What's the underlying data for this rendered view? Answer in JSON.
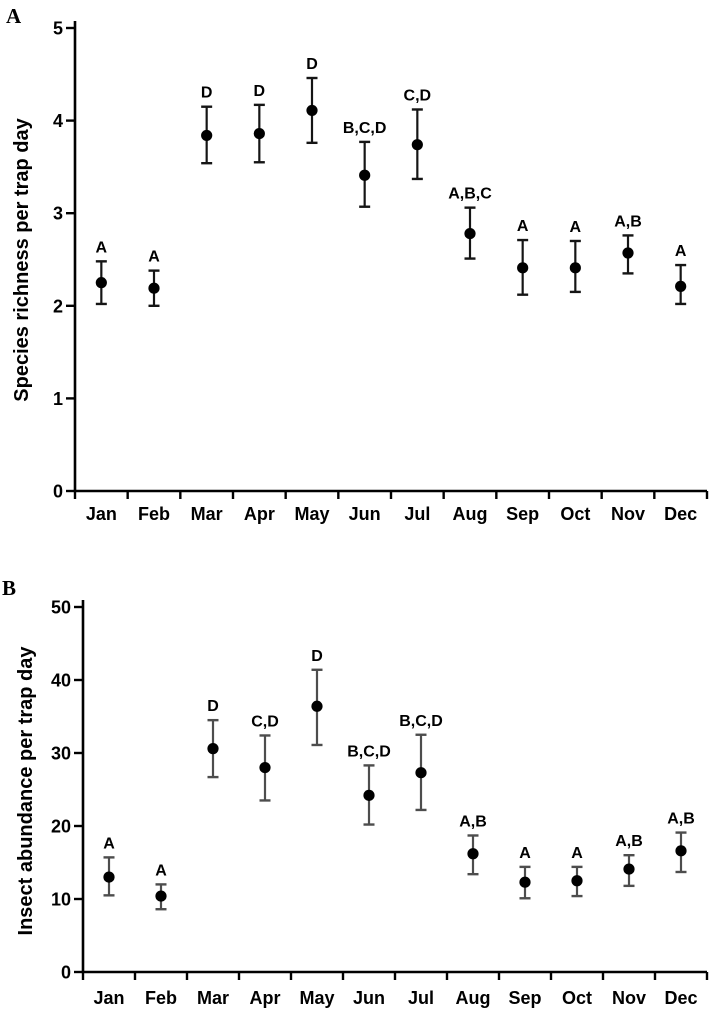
{
  "chart_data": [
    {
      "type": "scatter",
      "panel_label": "A",
      "ylabel": "Species richness per trap day",
      "xlabel": "",
      "ylim": [
        0,
        5
      ],
      "yticks": [
        0,
        1,
        2,
        3,
        4,
        5
      ],
      "grid": false,
      "legend": false,
      "marker_color": "#000000",
      "whisker_color": "#151515",
      "axis_color": "#000000",
      "categories": [
        "Jan",
        "Feb",
        "Mar",
        "Apr",
        "May",
        "Jun",
        "Jul",
        "Aug",
        "Sep",
        "Oct",
        "Nov",
        "Dec"
      ],
      "series": [
        {
          "name": "mean species richness with error bars",
          "values": [
            2.25,
            2.19,
            3.84,
            3.86,
            4.11,
            3.41,
            3.74,
            2.78,
            2.41,
            2.41,
            2.57,
            2.21
          ],
          "error_low": [
            2.02,
            2.0,
            3.54,
            3.55,
            3.76,
            3.07,
            3.37,
            2.51,
            2.12,
            2.15,
            2.35,
            2.02
          ],
          "error_high": [
            2.48,
            2.38,
            4.15,
            4.17,
            4.46,
            3.77,
            4.12,
            3.06,
            2.71,
            2.7,
            2.76,
            2.44
          ],
          "group_labels": [
            "A",
            "A",
            "D",
            "D",
            "D",
            "B,C,D",
            "C,D",
            "A,B,C",
            "A",
            "A",
            "A,B",
            "A"
          ]
        }
      ]
    },
    {
      "type": "scatter",
      "panel_label": "B",
      "ylabel": "Insect abundance per trap day",
      "xlabel": "",
      "ylim": [
        0,
        50
      ],
      "yticks": [
        0,
        10,
        20,
        30,
        40,
        50
      ],
      "grid": false,
      "legend": false,
      "marker_color": "#000000",
      "whisker_color": "#4d4d4d",
      "axis_color": "#000000",
      "categories": [
        "Jan",
        "Feb",
        "Mar",
        "Apr",
        "May",
        "Jun",
        "Jul",
        "Aug",
        "Sep",
        "Oct",
        "Nov",
        "Dec"
      ],
      "series": [
        {
          "name": "mean insect abundance with error bars",
          "values": [
            13.0,
            10.4,
            30.6,
            28.0,
            36.4,
            24.2,
            27.3,
            16.2,
            12.3,
            12.5,
            14.1,
            16.6
          ],
          "error_low": [
            10.5,
            8.6,
            26.7,
            23.5,
            31.1,
            20.2,
            22.2,
            13.4,
            10.1,
            10.4,
            11.8,
            13.7
          ],
          "error_high": [
            15.7,
            12.0,
            34.5,
            32.4,
            41.4,
            28.3,
            32.5,
            18.7,
            14.4,
            14.4,
            16.0,
            19.1
          ],
          "group_labels": [
            "A",
            "A",
            "D",
            "C,D",
            "D",
            "B,C,D",
            "B,C,D",
            "A,B",
            "A",
            "A",
            "A,B",
            "A,B"
          ]
        }
      ]
    }
  ]
}
